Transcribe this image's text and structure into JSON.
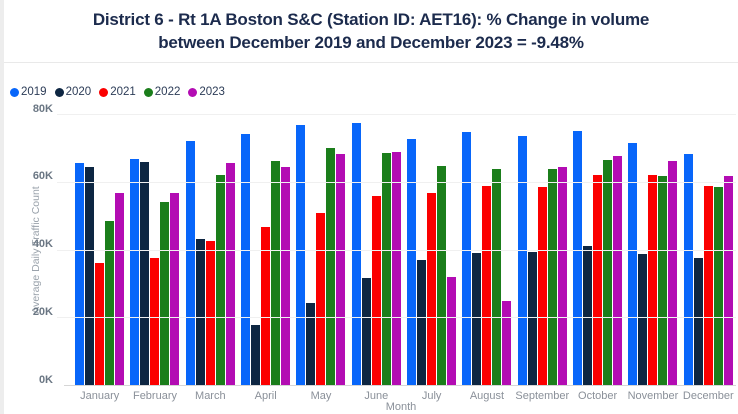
{
  "page": {
    "title_line1": "District 6 - Rt 1A Boston S&C (Station ID: AET16): % Change in volume",
    "title_line2": "between December 2019 and December 2023 = -9.48%"
  },
  "chart_data": {
    "type": "bar",
    "title": "District 6 - Rt 1A Boston S&C (Station ID: AET16): % Change in volume between December 2019 and December 2023 = -9.48%",
    "xlabel": "Month",
    "ylabel": "Average Daily Traffic Count",
    "ylim": [
      0,
      80000
    ],
    "ytick_labels": [
      "0K",
      "20K",
      "40K",
      "60K",
      "80K"
    ],
    "ytick_values": [
      0,
      20000,
      40000,
      60000,
      80000
    ],
    "grid": true,
    "legend_position": "top-left",
    "categories": [
      "January",
      "February",
      "March",
      "April",
      "May",
      "June",
      "July",
      "August",
      "September",
      "October",
      "November",
      "December"
    ],
    "series": [
      {
        "name": "2019",
        "color": "#0866fa",
        "values": [
          65800,
          66900,
          72400,
          74400,
          77000,
          77600,
          72900,
          74900,
          73700,
          75300,
          71800,
          68500
        ]
      },
      {
        "name": "2020",
        "color": "#0d2642",
        "values": [
          64600,
          66100,
          43300,
          18000,
          24600,
          31900,
          37200,
          39200,
          39600,
          41200,
          39100,
          37800
        ]
      },
      {
        "name": "2021",
        "color": "#fb0000",
        "values": [
          36300,
          37900,
          42900,
          47000,
          51200,
          56100,
          56900,
          59000,
          58800,
          62200,
          62200,
          59200
        ]
      },
      {
        "name": "2022",
        "color": "#1b7e1b",
        "values": [
          48700,
          54200,
          62300,
          66300,
          70200,
          68900,
          65100,
          64200,
          64000,
          66600,
          62000,
          58900
        ]
      },
      {
        "name": "2023",
        "color": "#b30cb3",
        "values": [
          57000,
          57100,
          65800,
          64600,
          68500,
          69000,
          32200,
          25200,
          64800,
          67900,
          66300,
          62000
        ]
      }
    ]
  }
}
